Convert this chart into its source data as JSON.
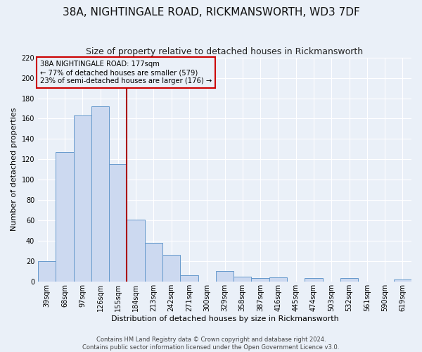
{
  "title": "38A, NIGHTINGALE ROAD, RICKMANSWORTH, WD3 7DF",
  "subtitle": "Size of property relative to detached houses in Rickmansworth",
  "xlabel": "Distribution of detached houses by size in Rickmansworth",
  "ylabel": "Number of detached properties",
  "bin_labels": [
    "39sqm",
    "68sqm",
    "97sqm",
    "126sqm",
    "155sqm",
    "184sqm",
    "213sqm",
    "242sqm",
    "271sqm",
    "300sqm",
    "329sqm",
    "358sqm",
    "387sqm",
    "416sqm",
    "445sqm",
    "474sqm",
    "503sqm",
    "532sqm",
    "561sqm",
    "590sqm",
    "619sqm"
  ],
  "bar_heights": [
    20,
    127,
    163,
    172,
    115,
    61,
    38,
    26,
    6,
    0,
    10,
    5,
    3,
    4,
    0,
    3,
    0,
    3,
    0,
    0,
    2
  ],
  "bar_color": "#ccd9f0",
  "bar_edgecolor": "#6699cc",
  "vline_color": "#aa0000",
  "vline_bin_index": 5,
  "annotation_title": "38A NIGHTINGALE ROAD: 177sqm",
  "annotation_line1": "← 77% of detached houses are smaller (579)",
  "annotation_line2": "23% of semi-detached houses are larger (176) →",
  "annotation_box_edgecolor": "#cc0000",
  "ylim_max": 220,
  "yticks": [
    0,
    20,
    40,
    60,
    80,
    100,
    120,
    140,
    160,
    180,
    200,
    220
  ],
  "footer1": "Contains HM Land Registry data © Crown copyright and database right 2024.",
  "footer2": "Contains public sector information licensed under the Open Government Licence v3.0.",
  "bg_color": "#eaf0f8",
  "grid_color": "#ffffff",
  "title_fontsize": 11,
  "subtitle_fontsize": 9,
  "axis_label_fontsize": 8,
  "xlabel_fontsize": 8,
  "tick_fontsize": 7,
  "footer_fontsize": 6
}
